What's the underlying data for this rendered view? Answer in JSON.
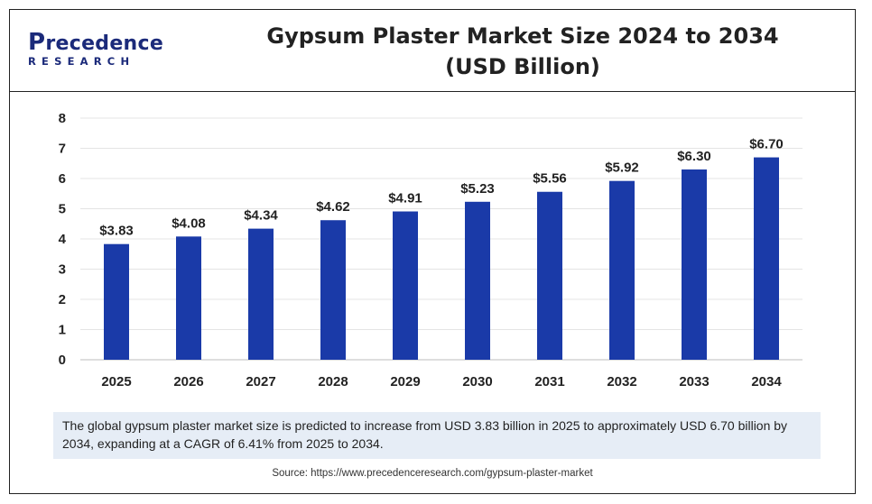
{
  "header": {
    "logo_main": "recedence",
    "logo_initial": "P",
    "logo_sub": "RESEARCH",
    "title_line1": "Gypsum Plaster Market Size 2024 to 2034",
    "title_line2": "(USD Billion)"
  },
  "chart_data": {
    "type": "bar",
    "categories": [
      "2025",
      "2026",
      "2027",
      "2028",
      "2029",
      "2030",
      "2031",
      "2032",
      "2033",
      "2034"
    ],
    "values": [
      3.83,
      4.08,
      4.34,
      4.62,
      4.91,
      5.23,
      5.56,
      5.92,
      6.3,
      6.7
    ],
    "data_labels": [
      "$3.83",
      "$4.08",
      "$4.34",
      "$4.62",
      "$4.91",
      "$5.23",
      "$5.56",
      "$5.92",
      "$6.30",
      "$6.70"
    ],
    "yticks": [
      "0",
      "1",
      "2",
      "3",
      "4",
      "5",
      "6",
      "7",
      "8"
    ],
    "ylim": [
      0,
      8
    ],
    "grid": true,
    "bar_color": "#1a3aa8",
    "title": "Gypsum Plaster Market Size 2024 to 2034 (USD Billion)"
  },
  "note": "The global gypsum plaster market size is predicted to increase from USD 3.83 billion in 2025 to approximately USD 6.70 billion by 2034, expanding at a CAGR of 6.41% from 2025 to 2034.",
  "source": "Source: https://www.precedenceresearch.com/gypsum-plaster-market",
  "colors": {
    "brand": "#1b2a7a",
    "bar": "#1a3aa8",
    "note_bg": "#e6edf6"
  }
}
